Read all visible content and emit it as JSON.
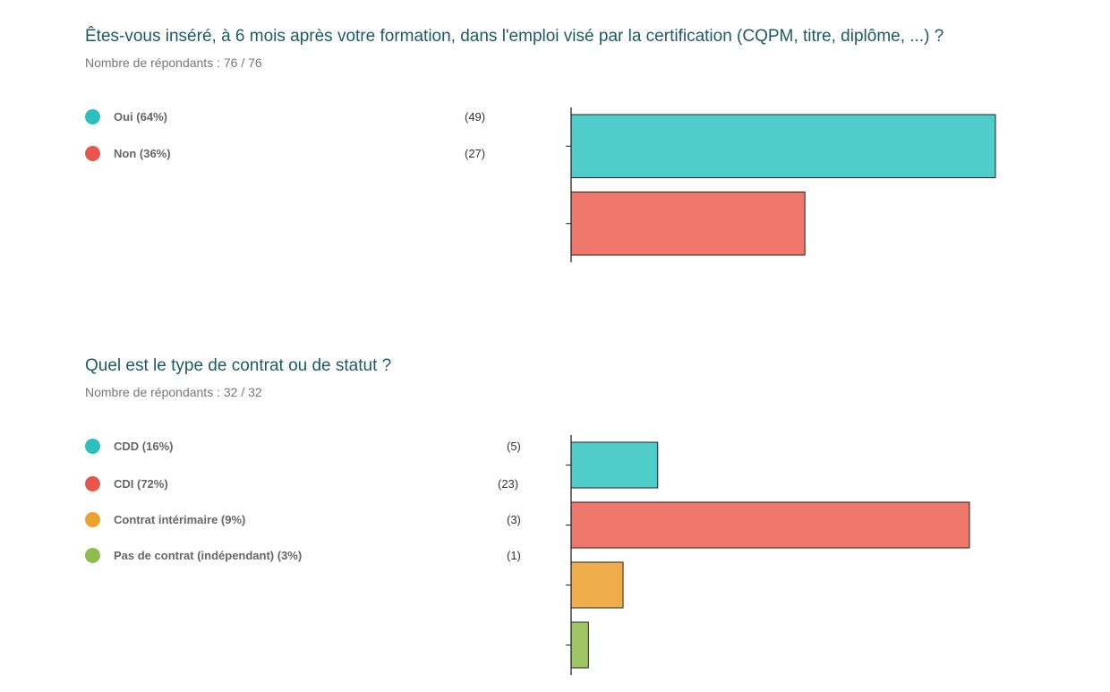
{
  "colors": {
    "title": "#1d5a66",
    "subtitle": "#777777",
    "teal": "#4ecdcb",
    "red": "#ee766a",
    "orange": "#f0ad4c",
    "green": "#9dc662",
    "dot_teal": "#2bbfbf",
    "dot_red": "#e8564a",
    "dot_orange": "#eda22e",
    "dot_green": "#8cbd4e"
  },
  "q1": {
    "title": "Êtes-vous inséré, à 6 mois après votre formation, dans l'emploi visé par la certification (CQPM, titre, diplôme, ...) ?",
    "respondents": "Nombre de répondants : 76 / 76",
    "legend": [
      {
        "label": "Oui (64%)",
        "count": "(49)",
        "dot_color": "#2bbfbf"
      },
      {
        "label": "Non (36%)",
        "count": "(27)",
        "dot_color": "#e8564a"
      }
    ]
  },
  "q2": {
    "title": "Quel est le type de contrat ou de statut ?",
    "respondents": "Nombre de répondants : 32 / 32",
    "legend": [
      {
        "label": "CDD (16%)",
        "count": "(5)",
        "dot_color": "#2bbfbf"
      },
      {
        "label": "CDI (72%)",
        "count": "(23)",
        "dot_color": "#e8564a"
      },
      {
        "label": "Contrat intérimaire (9%)",
        "count": "(3)",
        "dot_color": "#eda22e"
      },
      {
        "label": "Pas de contrat (indépendant) (3%)",
        "count": "(1)",
        "dot_color": "#8cbd4e"
      }
    ]
  },
  "chart_data": [
    {
      "type": "bar",
      "orientation": "horizontal",
      "title": "Êtes-vous inséré, à 6 mois après votre formation, dans l'emploi visé par la certification (CQPM, titre, diplôme, ...) ?",
      "categories": [
        "Oui",
        "Non"
      ],
      "values": [
        49,
        27
      ],
      "percentages": [
        64,
        36
      ],
      "colors": [
        "#4ecdcb",
        "#ee766a"
      ],
      "xlim": [
        0,
        49
      ],
      "grid": false
    },
    {
      "type": "bar",
      "orientation": "horizontal",
      "title": "Quel est le type de contrat ou de statut ?",
      "categories": [
        "CDD",
        "CDI",
        "Contrat intérimaire",
        "Pas de contrat (indépendant)"
      ],
      "values": [
        5,
        23,
        3,
        1
      ],
      "percentages": [
        16,
        72,
        9,
        3
      ],
      "colors": [
        "#4ecdcb",
        "#ee766a",
        "#f0ad4c",
        "#9dc662"
      ],
      "xlim": [
        0,
        24.5
      ],
      "grid": false
    }
  ]
}
